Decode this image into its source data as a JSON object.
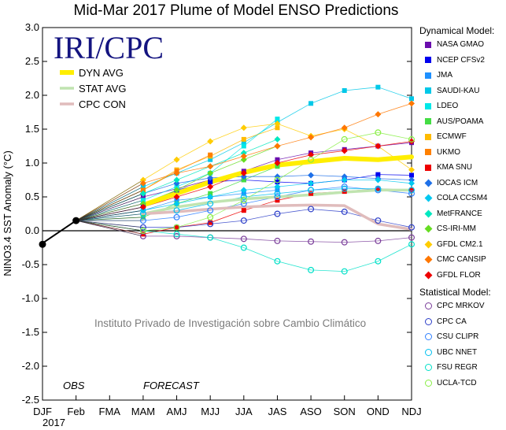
{
  "chart_data": {
    "type": "line",
    "title": "Mid-Mar 2017 Plume of Model ENSO Predictions",
    "ylabel": "NINO3.4 SST Anomaly (°C)",
    "xlabel": "",
    "ylim": [
      -2.5,
      3.0
    ],
    "yticks": [
      "3.0",
      "2.5",
      "2.0",
      "1.5",
      "1.0",
      "0.5",
      "0.0",
      "-0.5",
      "-1.0",
      "-1.5",
      "-2.0",
      "-2.5"
    ],
    "categories": [
      "DJF",
      "Feb",
      "FMA",
      "MAM",
      "AMJ",
      "MJJ",
      "JJA",
      "JAS",
      "ASO",
      "SON",
      "OND",
      "NDJ"
    ],
    "year_label": "2017",
    "logo_text": "IRI/CPC",
    "watermark": "Instituto Privado de Investigación sobre Cambio Climático",
    "obs_label": "OBS",
    "forecast_label": "FORECAST",
    "zero_line": true,
    "grid": false,
    "legend_position": "right",
    "observed": {
      "x": [
        "DJF",
        "Feb"
      ],
      "values": [
        -0.2,
        0.15
      ]
    },
    "averages": [
      {
        "name": "DYN AVG",
        "color": "#ffee00",
        "values": [
          0.38,
          0.55,
          0.72,
          0.86,
          0.97,
          1.02,
          1.07,
          1.05,
          1.09
        ]
      },
      {
        "name": "STAT AVG",
        "color": "#c0e4b0",
        "values": [
          0.25,
          0.35,
          0.42,
          0.47,
          0.5,
          0.53,
          0.57,
          0.6,
          0.6
        ]
      },
      {
        "name": "CPC CON",
        "color": "#e0bcbc",
        "values": [
          0.25,
          0.28,
          0.32,
          0.35,
          0.37,
          0.38,
          0.37,
          0.1,
          0.02
        ]
      }
    ],
    "series_groups": [
      {
        "group": "Dynamical Model:",
        "series": [
          {
            "name": "NASA GMAO",
            "color": "#6a0dad",
            "marker": "square",
            "values": [
              0.5,
              0.62,
              0.75,
              0.88,
              1.05,
              1.15,
              1.2,
              1.25,
              1.3
            ]
          },
          {
            "name": "NCEP CFSv2",
            "color": "#0000ee",
            "marker": "square",
            "values": [
              0.35,
              0.6,
              0.72,
              0.75,
              0.72,
              0.7,
              0.75,
              0.83,
              0.82
            ]
          },
          {
            "name": "JMA",
            "color": "#1e90ff",
            "marker": "square",
            "values": [
              0.3,
              0.45,
              0.5,
              0.55,
              0.6,
              null,
              null,
              null,
              null
            ]
          },
          {
            "name": "SAUDI-KAU",
            "color": "#00c8e8",
            "marker": "square",
            "values": [
              0.65,
              0.85,
              1.05,
              1.3,
              1.6,
              1.88,
              2.07,
              2.12,
              1.95
            ]
          },
          {
            "name": "LDEO",
            "color": "#00e8e8",
            "marker": "square",
            "values": [
              0.45,
              0.65,
              0.85,
              1.25,
              1.65,
              null,
              null,
              null,
              null
            ]
          },
          {
            "name": "AUS/POAMA",
            "color": "#44dd44",
            "marker": "square",
            "values": [
              0.2,
              0.4,
              0.55,
              0.75,
              0.95,
              null,
              null,
              null,
              null
            ]
          },
          {
            "name": "ECMWF",
            "color": "#ffbb00",
            "marker": "square",
            "values": [
              0.6,
              0.9,
              1.1,
              1.35,
              1.52,
              null,
              null,
              null,
              null
            ]
          },
          {
            "name": "UKMO",
            "color": "#ff8000",
            "marker": "square",
            "values": [
              0.6,
              0.88,
              1.12,
              null,
              null,
              null,
              null,
              null,
              null
            ]
          },
          {
            "name": "KMA SNU",
            "color": "#ee0000",
            "marker": "square",
            "values": [
              -0.05,
              0.05,
              0.12,
              0.3,
              0.45,
              0.55,
              0.58,
              0.62,
              0.6
            ]
          },
          {
            "name": "IOCAS ICM",
            "color": "#1e70e8",
            "marker": "diamond",
            "values": [
              0.55,
              0.7,
              0.78,
              0.8,
              0.8,
              0.82,
              0.8,
              0.77,
              0.75
            ]
          },
          {
            "name": "COLA CCSM4",
            "color": "#00c8f0",
            "marker": "diamond",
            "values": [
              0.3,
              0.4,
              0.5,
              0.6,
              0.65,
              0.7,
              0.75,
              0.75,
              0.7
            ]
          },
          {
            "name": "MetFRANCE",
            "color": "#00e8c0",
            "marker": "diamond",
            "values": [
              0.55,
              0.75,
              0.95,
              1.15,
              1.35,
              null,
              null,
              null,
              null
            ]
          },
          {
            "name": "CS-IRI-MM",
            "color": "#66dd22",
            "marker": "diamond",
            "values": [
              0.4,
              0.6,
              0.85,
              1.05,
              1.25,
              null,
              null,
              null,
              null
            ]
          },
          {
            "name": "GFDL CM2.1",
            "color": "#ffcc00",
            "marker": "diamond",
            "values": [
              0.75,
              1.05,
              1.32,
              1.52,
              1.58,
              1.4,
              1.5,
              1.25,
              0.9
            ]
          },
          {
            "name": "CMC CANSIP",
            "color": "#ff7700",
            "marker": "diamond",
            "values": [
              0.7,
              0.85,
              0.95,
              1.1,
              1.25,
              1.38,
              1.52,
              1.72,
              1.88
            ]
          },
          {
            "name": "GFDL FLOR",
            "color": "#ee0000",
            "marker": "diamond",
            "values": [
              0.35,
              0.5,
              0.65,
              0.85,
              1.0,
              1.12,
              1.18,
              1.25,
              1.32
            ]
          }
        ]
      },
      {
        "group": "Statistical Model:",
        "series": [
          {
            "name": "CPC MRKOV",
            "color": "#7a3d9a",
            "marker": "circle",
            "values": [
              -0.08,
              -0.08,
              -0.1,
              -0.12,
              -0.15,
              -0.16,
              -0.17,
              -0.15,
              -0.1
            ]
          },
          {
            "name": "CPC CA",
            "color": "#2b3dc8",
            "marker": "circle",
            "values": [
              0.05,
              0.05,
              0.1,
              0.15,
              0.25,
              0.32,
              0.28,
              0.15,
              0.05
            ]
          },
          {
            "name": "CSU CLIPR",
            "color": "#3080ff",
            "marker": "circle",
            "values": [
              0.15,
              0.2,
              0.3,
              0.4,
              0.5,
              0.6,
              0.65,
              0.6,
              0.55
            ]
          },
          {
            "name": "UBC NNET",
            "color": "#00c0f0",
            "marker": "circle",
            "values": [
              0.25,
              0.3,
              0.4,
              0.5,
              0.55,
              0.6,
              0.62,
              0.62,
              0.6
            ]
          },
          {
            "name": "FSU REGR",
            "color": "#00e0c8",
            "marker": "circle",
            "values": [
              0.0,
              -0.05,
              -0.1,
              -0.25,
              -0.45,
              -0.58,
              -0.6,
              -0.45,
              -0.2
            ]
          },
          {
            "name": "UCLA-TCD",
            "color": "#88ee44",
            "marker": "circle",
            "values": [
              0.0,
              0.05,
              0.2,
              0.45,
              0.75,
              1.05,
              1.35,
              1.45,
              1.35
            ]
          }
        ]
      }
    ]
  }
}
